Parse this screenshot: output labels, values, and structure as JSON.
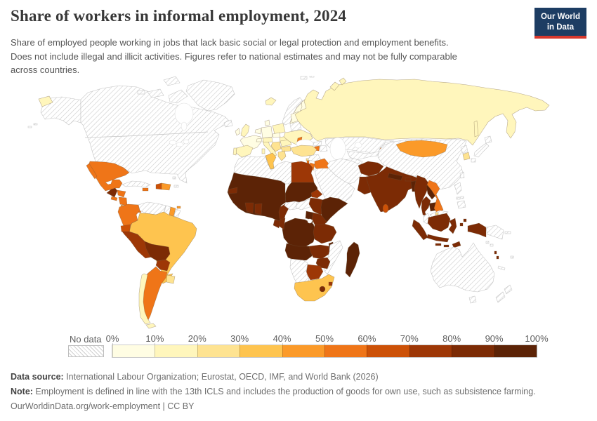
{
  "header": {
    "title": "Share of workers in informal employment, 2024",
    "subtitle_lines": [
      "Share of employed people working in jobs that lack basic social or legal protection and employment benefits.",
      "Does not include illegal and illicit activities. Figures refer to national estimates and may not be fully comparable",
      "across countries."
    ],
    "logo_line1": "Our World",
    "logo_line2": "in Data",
    "logo_bg_color": "#1d3d63",
    "logo_accent_color": "#d7382d"
  },
  "legend": {
    "no_data_label": "No data",
    "tick_labels": [
      "0%",
      "10%",
      "20%",
      "30%",
      "40%",
      "50%",
      "60%",
      "70%",
      "80%",
      "90%",
      "100%"
    ],
    "bins": [
      {
        "range": "0-10%",
        "color": "#FFFDE3"
      },
      {
        "range": "10-20%",
        "color": "#FFF6BC"
      },
      {
        "range": "20-30%",
        "color": "#FEE391"
      },
      {
        "range": "30-40%",
        "color": "#FEC44F"
      },
      {
        "range": "40-50%",
        "color": "#FB9A29"
      },
      {
        "range": "50-60%",
        "color": "#EF7518"
      },
      {
        "range": "60-70%",
        "color": "#CC5107"
      },
      {
        "range": "70-80%",
        "color": "#9D3706"
      },
      {
        "range": "80-90%",
        "color": "#7C2B05"
      },
      {
        "range": "90-100%",
        "color": "#5C2306"
      }
    ]
  },
  "footer": {
    "data_source_label": "Data source:",
    "data_source": " International Labour Organization; Eurostat, OECD, IMF, and World Bank (2026)",
    "note_label": "Note:",
    "note": " Employment is defined in line with the 13th ICLS and includes the production of goods for own use, such as subsistence farming.",
    "url_line": "OurWorldinData.org/work-employment | CC BY"
  },
  "chart_data": {
    "type": "choropleth",
    "title": "Share of workers in informal employment, 2024",
    "unit": "% of total employment",
    "legend_position": "bottom",
    "countries": {
      "Mexico": "50-60%",
      "Guatemala": "80-90%",
      "Honduras": "50-60%",
      "El Salvador": "50-60%",
      "Nicaragua": "50-60%",
      "Costa Rica": "40-50%",
      "Panama": "50-60%",
      "Haiti": "60-70%",
      "Dominican Republic": "40-50%",
      "Jamaica": "50-60%",
      "Trinidad and Tobago": "40-50%",
      "Colombia": "50-60%",
      "Ecuador": "60-70%",
      "Peru": "70-80%",
      "Brazil": "30-40%",
      "Bolivia": "80-90%",
      "Paraguay": "70-80%",
      "Argentina": "50-60%",
      "Chile": "10-20%",
      "Uruguay": "20-30%",
      "Suriname": "40-50%",
      "Iceland": "10-20%",
      "United Kingdom": "10-20%",
      "Ireland": "0-10%",
      "France": "0-10%",
      "Spain": "10-20%",
      "Portugal": "10-20%",
      "Germany": "0-10%",
      "Netherlands": "0-10%",
      "Denmark": "0-10%",
      "Sweden": "0-10%",
      "Finland": "0-10%",
      "Poland": "10-20%",
      "Czechia": "0-10%",
      "Austria": "10-20%",
      "Switzerland": "0-10%",
      "Italy": "10-20%",
      "Hungary": "10-20%",
      "Romania": "10-20%",
      "Bulgaria": "20-30%",
      "Serbia": "20-30%",
      "Greece": "20-30%",
      "Baltics": "0-10%",
      "Ukraine": "10-20%",
      "Moldova": "50-60%",
      "Russia": "10-20%",
      "Turkey": "20-30%",
      "Cyprus": "20-30%",
      "Armenia": "50-60%",
      "Iraq": "50-60%",
      "Jordan": "50-60%",
      "Lebanon": "50-60%",
      "Egypt": "70-80%",
      "Tunisia": "30-40%",
      "Sudan": "90-100%",
      "Mauritania": "90-100%",
      "Mali": "90-100%",
      "Niger": "90-100%",
      "Chad": "90-100%",
      "Burkina Faso": "90-100%",
      "Nigeria": "90-100%",
      "Guinea": "90-100%",
      "Senegal": "80-90%",
      "Cote d'Ivoire": "80-90%",
      "Ghana": "80-90%",
      "Cameroon": "80-90%",
      "Eritrea": "70-80%",
      "Ethiopia": "80-90%",
      "Somalia": "90-100%",
      "Kenya": "80-90%",
      "Uganda": "90-100%",
      "Rwanda": "90-100%",
      "Burundi": "90-100%",
      "Democratic Republic of Congo": "90-100%",
      "Congo": "80-90%",
      "Gabon": "80-90%",
      "Angola": "90-100%",
      "Zambia": "80-90%",
      "Tanzania": "80-90%",
      "Malawi": "90-100%",
      "Zimbabwe": "80-90%",
      "Botswana": "70-80%",
      "South Africa": "30-40%",
      "Lesotho": "80-90%",
      "Eswatini": "70-80%",
      "Madagascar": "90-100%",
      "Kyrgyzstan": "50-60%",
      "Tajikistan": "70-80%",
      "Mongolia": "40-50%",
      "South Korea": "20-30%",
      "Afghanistan": "80-90%",
      "Pakistan": "80-90%",
      "India": "80-90%",
      "Nepal": "90-100%",
      "Bhutan": "80-90%",
      "Bangladesh": "90-100%",
      "Sri Lanka": "60-70%",
      "Myanmar": "80-90%",
      "Thailand": "80-90%",
      "Laos": "90-100%",
      "Cambodia": "90-100%",
      "Vietnam": "50-60%",
      "Indonesia": "80-90%",
      "Brunei": "20-30%",
      "Timor-Leste": "80-90%",
      "Vanuatu": "80-90%"
    },
    "no_data": [
      "United States",
      "Canada",
      "Greenland",
      "Cuba",
      "Bahamas",
      "Puerto Rico",
      "Venezuela",
      "Guyana",
      "French Guiana",
      "Norway",
      "Belarus",
      "Morocco",
      "Algeria",
      "Libya",
      "Western Sahara",
      "Saudi Arabia",
      "Yemen",
      "Oman",
      "Syria",
      "Israel",
      "Iran",
      "Kazakhstan",
      "Uzbekistan",
      "Turkmenistan",
      "Georgia",
      "Azerbaijan",
      "China",
      "North Korea",
      "Japan",
      "Taiwan",
      "Philippines",
      "Malaysia",
      "Papua New Guinea",
      "Solomon Islands",
      "Fiji",
      "New Caledonia",
      "Australia",
      "New Zealand",
      "Central African Republic",
      "South Sudan",
      "Namibia",
      "Mozambique",
      "Svalbard"
    ]
  }
}
